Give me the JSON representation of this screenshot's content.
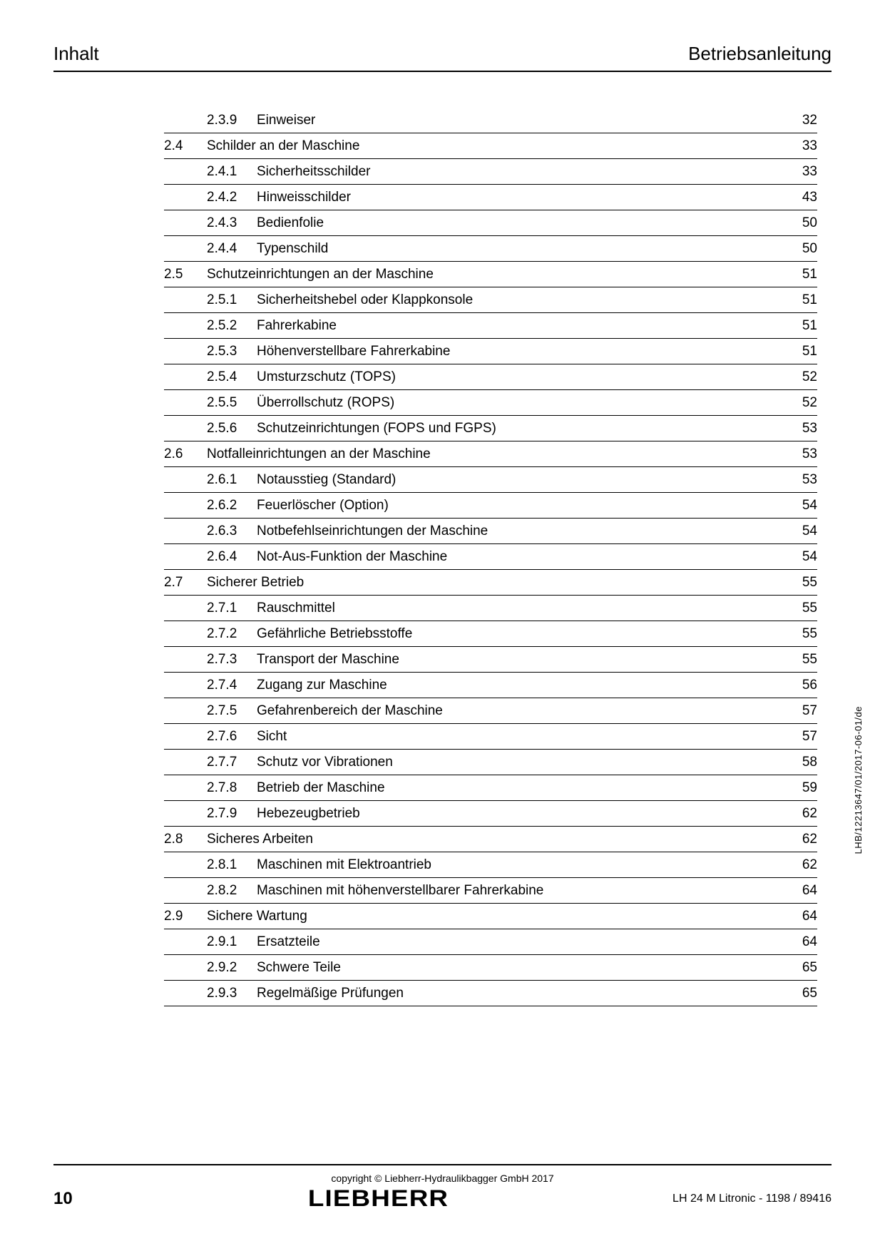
{
  "header": {
    "left": "Inhalt",
    "right": "Betriebsanleitung"
  },
  "toc": [
    {
      "sec": "",
      "sub": "2.3.9",
      "title": "Einweiser",
      "page": "32"
    },
    {
      "sec": "2.4",
      "sub": "",
      "title": "Schilder an der Maschine",
      "page": "33"
    },
    {
      "sec": "",
      "sub": "2.4.1",
      "title": "Sicherheitsschilder",
      "page": "33"
    },
    {
      "sec": "",
      "sub": "2.4.2",
      "title": "Hinweisschilder",
      "page": "43"
    },
    {
      "sec": "",
      "sub": "2.4.3",
      "title": "Bedienfolie",
      "page": "50"
    },
    {
      "sec": "",
      "sub": "2.4.4",
      "title": "Typenschild",
      "page": "50"
    },
    {
      "sec": "2.5",
      "sub": "",
      "title": "Schutzeinrichtungen an der Maschine",
      "page": "51"
    },
    {
      "sec": "",
      "sub": "2.5.1",
      "title": "Sicherheitshebel oder Klappkonsole",
      "page": "51"
    },
    {
      "sec": "",
      "sub": "2.5.2",
      "title": "Fahrerkabine",
      "page": "51"
    },
    {
      "sec": "",
      "sub": "2.5.3",
      "title": "Höhenverstellbare Fahrerkabine",
      "page": "51"
    },
    {
      "sec": "",
      "sub": "2.5.4",
      "title": "Umsturzschutz (TOPS)",
      "page": "52"
    },
    {
      "sec": "",
      "sub": "2.5.5",
      "title": "Überrollschutz (ROPS)",
      "page": "52"
    },
    {
      "sec": "",
      "sub": "2.5.6",
      "title": "Schutzeinrichtungen (FOPS und FGPS)",
      "page": "53"
    },
    {
      "sec": "2.6",
      "sub": "",
      "title": "Notfalleinrichtungen an der Maschine",
      "page": "53"
    },
    {
      "sec": "",
      "sub": "2.6.1",
      "title": "Notausstieg (Standard)",
      "page": "53"
    },
    {
      "sec": "",
      "sub": "2.6.2",
      "title": "Feuerlöscher (Option)",
      "page": "54"
    },
    {
      "sec": "",
      "sub": "2.6.3",
      "title": "Notbefehlseinrichtungen der Maschine",
      "page": "54"
    },
    {
      "sec": "",
      "sub": "2.6.4",
      "title": "Not-Aus-Funktion der Maschine",
      "page": "54"
    },
    {
      "sec": "2.7",
      "sub": "",
      "title": "Sicherer Betrieb",
      "page": "55"
    },
    {
      "sec": "",
      "sub": "2.7.1",
      "title": "Rauschmittel",
      "page": "55"
    },
    {
      "sec": "",
      "sub": "2.7.2",
      "title": "Gefährliche Betriebsstoffe",
      "page": "55"
    },
    {
      "sec": "",
      "sub": "2.7.3",
      "title": "Transport der Maschine",
      "page": "55"
    },
    {
      "sec": "",
      "sub": "2.7.4",
      "title": "Zugang zur Maschine",
      "page": "56"
    },
    {
      "sec": "",
      "sub": "2.7.5",
      "title": "Gefahrenbereich der Maschine",
      "page": "57"
    },
    {
      "sec": "",
      "sub": "2.7.6",
      "title": "Sicht",
      "page": "57"
    },
    {
      "sec": "",
      "sub": "2.7.7",
      "title": "Schutz vor Vibrationen",
      "page": "58"
    },
    {
      "sec": "",
      "sub": "2.7.8",
      "title": "Betrieb der Maschine",
      "page": "59"
    },
    {
      "sec": "",
      "sub": "2.7.9",
      "title": "Hebezeugbetrieb",
      "page": "62"
    },
    {
      "sec": "2.8",
      "sub": "",
      "title": "Sicheres Arbeiten",
      "page": "62"
    },
    {
      "sec": "",
      "sub": "2.8.1",
      "title": "Maschinen mit Elektroantrieb",
      "page": "62"
    },
    {
      "sec": "",
      "sub": "2.8.2",
      "title": "Maschinen mit höhenverstellbarer Fahrerkabine",
      "page": "64"
    },
    {
      "sec": "2.9",
      "sub": "",
      "title": "Sichere Wartung",
      "page": "64"
    },
    {
      "sec": "",
      "sub": "2.9.1",
      "title": "Ersatzteile",
      "page": "64"
    },
    {
      "sec": "",
      "sub": "2.9.2",
      "title": "Schwere Teile",
      "page": "65"
    },
    {
      "sec": "",
      "sub": "2.9.3",
      "title": "Regelmäßige Prüfungen",
      "page": "65"
    }
  ],
  "side_text": "LHB/12213647/01/2017-06-01/de",
  "footer": {
    "copyright": "copyright © Liebherr-Hydraulikbagger GmbH 2017",
    "page_number": "10",
    "logo": "LIEBHERR",
    "doc_id": "LH 24 M Litronic  - 1198 / 89416"
  }
}
